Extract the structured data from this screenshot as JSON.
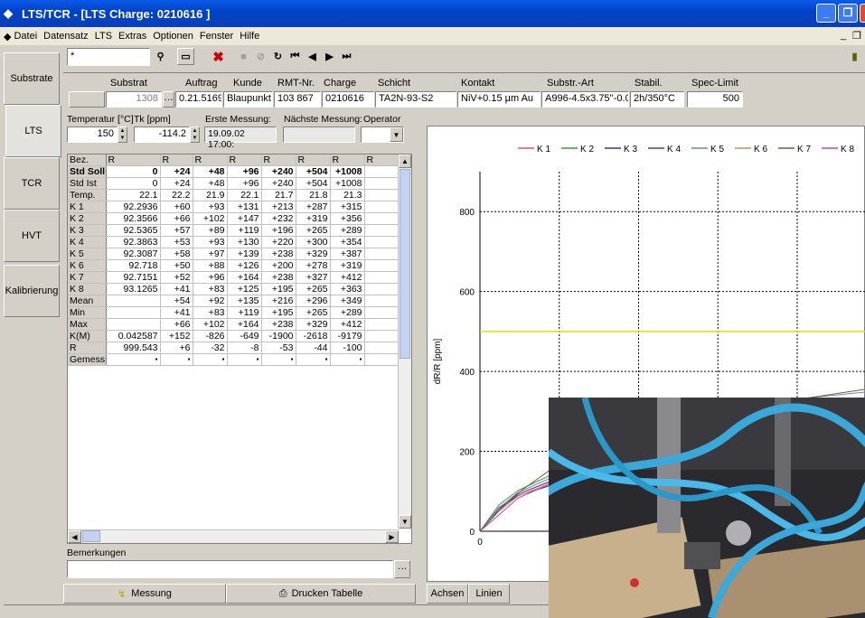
{
  "window": {
    "title": "LTS/TCR - [LTS Charge: 0210616 ]"
  },
  "menu": [
    "Datei",
    "Datensatz",
    "LTS",
    "Extras",
    "Optionen",
    "Fenster",
    "Hilfe"
  ],
  "search": {
    "value": "*"
  },
  "side_tabs": [
    "Substrate",
    "LTS",
    "TCR",
    "HVT",
    "Kalibrierung"
  ],
  "record": {
    "headers": {
      "substrat": "Substrat",
      "auftrag": "Auftrag",
      "kunde": "Kunde",
      "rmt": "RMT-Nr.",
      "charge": "Charge",
      "schicht": "Schicht",
      "kontakt": "Kontakt",
      "substr_art": "Substr.-Art",
      "stabil": "Stabil.",
      "spec": "Spec-Limit"
    },
    "values": {
      "substrat": "1308",
      "auftrag": "0.21.5169",
      "kunde": "Blaupunkt",
      "rmt": "103 867",
      "charge": "0210616",
      "schicht": "TA2N-93-S2",
      "kontakt": "NiV+0.15 µm Au",
      "substr_art": "A996-4.5x3.75''-0.0",
      "stabil": "2h/350°C",
      "spec": "500"
    }
  },
  "measure": {
    "temp_label": "Temperatur [°C]",
    "temp_value": "150",
    "tk_label": "Tk [ppm]",
    "tk_value": "-114.2",
    "first_label": "Erste Messung:",
    "first_value": "19.09.02 17:00:",
    "next_label": "Nächste Messung:",
    "next_value": "",
    "operator_label": "Operator"
  },
  "table": {
    "header": [
      "Bez.",
      "R",
      "R",
      "R",
      "R",
      "R",
      "R",
      "R",
      "R"
    ],
    "rows": [
      {
        "label": "Std Soll",
        "bold": true,
        "cells": [
          "0",
          "+24",
          "+48",
          "+96",
          "+240",
          "+504",
          "+1008",
          ""
        ]
      },
      {
        "label": "Std Ist",
        "cells": [
          "0",
          "+24",
          "+48",
          "+96",
          "+240",
          "+504",
          "+1008",
          ""
        ]
      },
      {
        "label": "Temp.",
        "cells": [
          "22.1",
          "22.2",
          "21.9",
          "22.1",
          "21.7",
          "21.8",
          "21.3",
          ""
        ]
      },
      {
        "label": "K 1",
        "cells": [
          "92.2936",
          "+60",
          "+93",
          "+131",
          "+213",
          "+287",
          "+315",
          ""
        ]
      },
      {
        "label": "K 2",
        "cells": [
          "92.3566",
          "+66",
          "+102",
          "+147",
          "+232",
          "+319",
          "+356",
          ""
        ]
      },
      {
        "label": "K 3",
        "cells": [
          "92.5365",
          "+57",
          "+89",
          "+119",
          "+196",
          "+265",
          "+289",
          ""
        ]
      },
      {
        "label": "K 4",
        "cells": [
          "92.3863",
          "+53",
          "+93",
          "+130",
          "+220",
          "+300",
          "+354",
          ""
        ]
      },
      {
        "label": "K 5",
        "cells": [
          "92.3087",
          "+58",
          "+97",
          "+139",
          "+238",
          "+329",
          "+387",
          ""
        ]
      },
      {
        "label": "K 6",
        "cells": [
          "92.718",
          "+50",
          "+88",
          "+126",
          "+200",
          "+278",
          "+319",
          ""
        ]
      },
      {
        "label": "K 7",
        "cells": [
          "92.7151",
          "+52",
          "+96",
          "+164",
          "+238",
          "+327",
          "+412",
          ""
        ]
      },
      {
        "label": "K 8",
        "cells": [
          "93.1265",
          "+41",
          "+83",
          "+125",
          "+195",
          "+265",
          "+363",
          ""
        ]
      },
      {
        "label": "Mean",
        "cells": [
          "",
          "+54",
          "+92",
          "+135",
          "+216",
          "+296",
          "+349",
          ""
        ]
      },
      {
        "label": "Min",
        "cells": [
          "",
          "+41",
          "+83",
          "+119",
          "+195",
          "+265",
          "+289",
          ""
        ]
      },
      {
        "label": "Max",
        "cells": [
          "",
          "+66",
          "+102",
          "+164",
          "+238",
          "+329",
          "+412",
          ""
        ]
      },
      {
        "label": "K(M)",
        "cells": [
          "0.042587",
          "+152",
          "-826",
          "-649",
          "-1900",
          "-2618",
          "-9179",
          ""
        ]
      },
      {
        "label": "R",
        "cells": [
          "999.543",
          "+6",
          "-32",
          "-8",
          "-53",
          "-44",
          "-100",
          ""
        ]
      },
      {
        "label": "Gemess",
        "cells": [
          "",
          "",
          "",
          "",
          "",
          "",
          "",
          ""
        ]
      }
    ]
  },
  "remarks_label": "Bemerkungen",
  "buttons": {
    "messung": "Messung",
    "drucken": "Drucken Tabelle",
    "achsen": "Achsen",
    "linien": "Linien"
  },
  "chart_data": {
    "type": "line",
    "ylabel": "dR/R [ppm]",
    "xlim": [
      0,
      1008
    ],
    "ylim": [
      0,
      900
    ],
    "yticks": [
      0,
      200,
      400,
      600,
      800
    ],
    "xticks": [
      0,
      100,
      200
    ],
    "spec_limit": 500,
    "colors": {
      "K 1": "#e0507a",
      "K 2": "#3a9a3a",
      "K 3": "#3030a0",
      "K 4": "#7a2a8a",
      "K 5": "#5a8ad0",
      "K 6": "#c09060",
      "K 7": "#7a5a30",
      "K 8": "#c040c0",
      "spec": "#e0e000"
    },
    "x": [
      0,
      24,
      48,
      96,
      240,
      504,
      1008
    ],
    "series": [
      {
        "name": "K 1",
        "values": [
          0,
          60,
          93,
          131,
          213,
          287,
          315
        ]
      },
      {
        "name": "K 2",
        "values": [
          0,
          66,
          102,
          147,
          232,
          319,
          356
        ]
      },
      {
        "name": "K 3",
        "values": [
          0,
          57,
          89,
          119,
          196,
          265,
          289
        ]
      },
      {
        "name": "K 4",
        "values": [
          0,
          53,
          93,
          130,
          220,
          300,
          354
        ]
      },
      {
        "name": "K 5",
        "values": [
          0,
          58,
          97,
          139,
          238,
          329,
          387
        ]
      },
      {
        "name": "K 6",
        "values": [
          0,
          50,
          88,
          126,
          200,
          278,
          319
        ]
      },
      {
        "name": "K 7",
        "values": [
          0,
          52,
          96,
          164,
          238,
          327,
          412
        ]
      },
      {
        "name": "K 8",
        "values": [
          0,
          41,
          83,
          125,
          195,
          265,
          363
        ]
      }
    ]
  }
}
